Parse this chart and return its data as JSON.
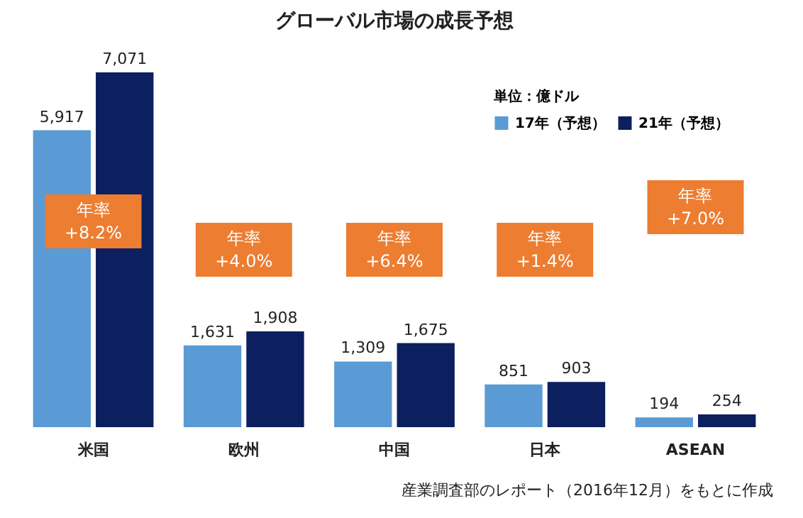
{
  "chart_data": {
    "type": "bar",
    "title": "グローバル市場の成長予想",
    "legend_title": "単位：億ドル",
    "categories": [
      "米国",
      "欧州",
      "中国",
      "日本",
      "ASEAN"
    ],
    "series": [
      {
        "name": "17年（予想）",
        "color": "#5b9bd5",
        "values": [
          5917,
          1631,
          1309,
          851,
          194
        ],
        "value_labels": [
          "5,917",
          "1,631",
          "1,309",
          "851",
          "194"
        ]
      },
      {
        "name": "21年（予想）",
        "color": "#0c1f5e",
        "values": [
          7071,
          1908,
          1675,
          903,
          254
        ],
        "value_labels": [
          "7,071",
          "1,908",
          "1,675",
          "903",
          "254"
        ]
      }
    ],
    "legend": "top right",
    "annotations": [
      "年率\n+8.2%",
      "年率\n+4.0%",
      "年率\n+6.4%",
      "年率\n+1.4%",
      "年率\n+7.0%",
      "産業調査部のレポート（2016年12月）をもとに作成"
    ]
  }
}
